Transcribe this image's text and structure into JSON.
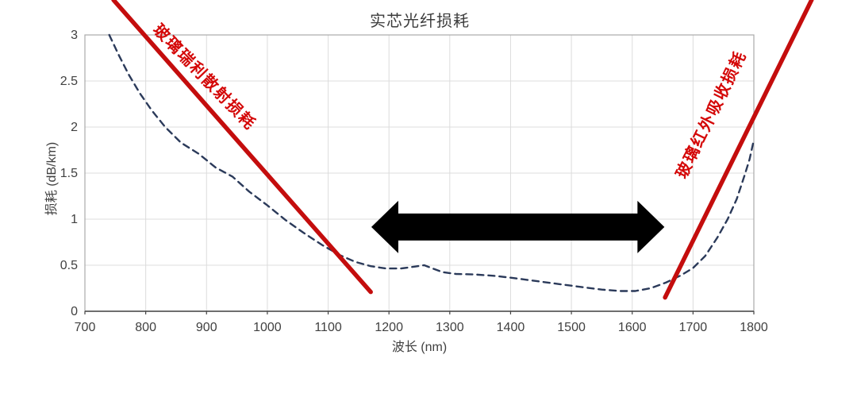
{
  "chart_data": {
    "type": "line",
    "title": "实芯光纤损耗",
    "xlabel": "波长 (nm)",
    "ylabel": "损耗 (dB/km)",
    "xlim": [
      700,
      1800
    ],
    "ylim": [
      0,
      3
    ],
    "x_ticks": [
      700,
      800,
      900,
      1000,
      1100,
      1200,
      1300,
      1400,
      1500,
      1600,
      1700,
      1800
    ],
    "y_ticks": [
      0,
      0.5,
      1,
      1.5,
      2,
      2.5,
      3
    ],
    "grid": true,
    "legend": "none",
    "colors": {
      "curve": "#2b3a5a",
      "annotation_line": "#c40d0d",
      "annotation_label": "#d40707",
      "arrow": "#000000",
      "gridline": "#dcdcdc",
      "frame": "#aaaaaa",
      "axis": "#444444",
      "text": "#404040"
    },
    "series": [
      {
        "name": "fiber-loss-curve",
        "style": "dashed",
        "color": "#2b3a5a",
        "points": [
          [
            740,
            3.0
          ],
          [
            755,
            2.79
          ],
          [
            772,
            2.57
          ],
          [
            790,
            2.37
          ],
          [
            810,
            2.18
          ],
          [
            832,
            2.0
          ],
          [
            858,
            1.83
          ],
          [
            887,
            1.71
          ],
          [
            915,
            1.56
          ],
          [
            943,
            1.46
          ],
          [
            970,
            1.3
          ],
          [
            1000,
            1.15
          ],
          [
            1030,
            0.99
          ],
          [
            1060,
            0.85
          ],
          [
            1090,
            0.72
          ],
          [
            1119,
            0.61
          ],
          [
            1145,
            0.535
          ],
          [
            1170,
            0.49
          ],
          [
            1195,
            0.465
          ],
          [
            1220,
            0.465
          ],
          [
            1243,
            0.485
          ],
          [
            1258,
            0.5
          ],
          [
            1272,
            0.465
          ],
          [
            1288,
            0.425
          ],
          [
            1310,
            0.405
          ],
          [
            1340,
            0.4
          ],
          [
            1372,
            0.385
          ],
          [
            1400,
            0.365
          ],
          [
            1440,
            0.33
          ],
          [
            1480,
            0.295
          ],
          [
            1515,
            0.265
          ],
          [
            1550,
            0.235
          ],
          [
            1580,
            0.22
          ],
          [
            1605,
            0.22
          ],
          [
            1630,
            0.25
          ],
          [
            1655,
            0.31
          ],
          [
            1680,
            0.39
          ],
          [
            1700,
            0.47
          ],
          [
            1720,
            0.6
          ],
          [
            1740,
            0.8
          ],
          [
            1757,
            1.0
          ],
          [
            1772,
            1.22
          ],
          [
            1785,
            1.48
          ],
          [
            1793,
            1.65
          ],
          [
            1800,
            1.86
          ]
        ]
      }
    ],
    "annotations": {
      "lines": [
        {
          "label": "玻璃瑞利散射损耗",
          "color": "#c40d0d",
          "x1": 747,
          "y1": 3.38,
          "x2": 1170,
          "y2": 0.21
        },
        {
          "label": "玻璃红外吸收损耗",
          "color": "#c40d0d",
          "x1": 1654,
          "y1": 0.15,
          "x2": 1895,
          "y2": 3.38
        }
      ],
      "double_arrow": {
        "x1": 1171,
        "x2": 1653,
        "y": 0.915,
        "color": "#000000"
      }
    }
  }
}
